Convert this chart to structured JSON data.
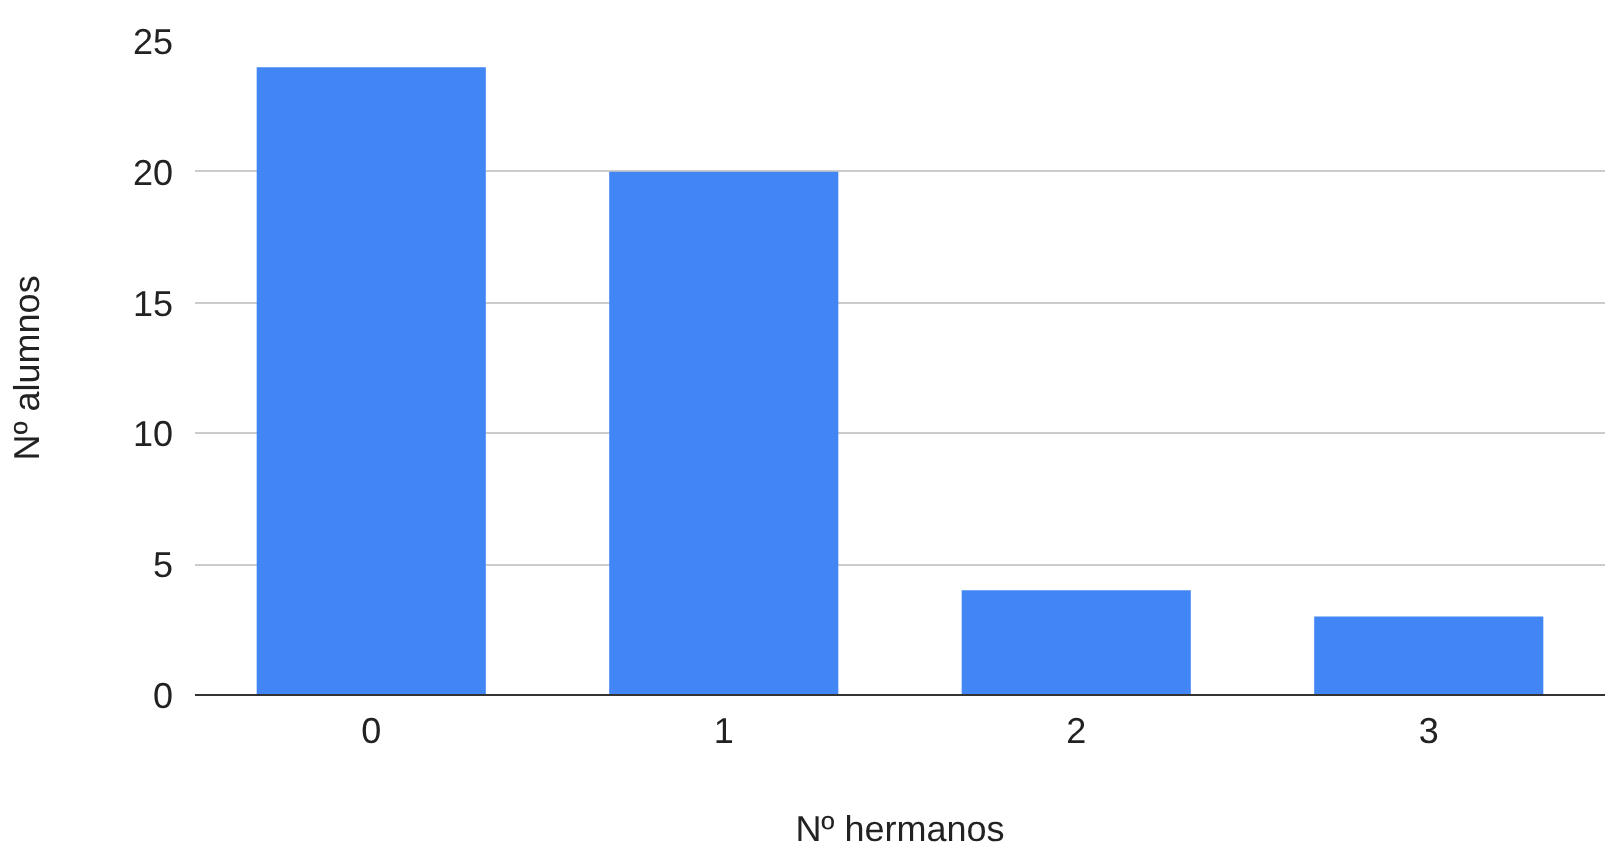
{
  "chart_data": {
    "type": "bar",
    "xlabel": "Nº hermanos",
    "ylabel": "Nº alumnos",
    "categories": [
      "0",
      "1",
      "2",
      "3"
    ],
    "values": [
      24,
      20,
      4,
      3
    ],
    "color": "#4285f4",
    "ylim": [
      0,
      25
    ],
    "yticks": [
      0,
      5,
      10,
      15,
      20,
      25
    ],
    "grid": "y"
  }
}
